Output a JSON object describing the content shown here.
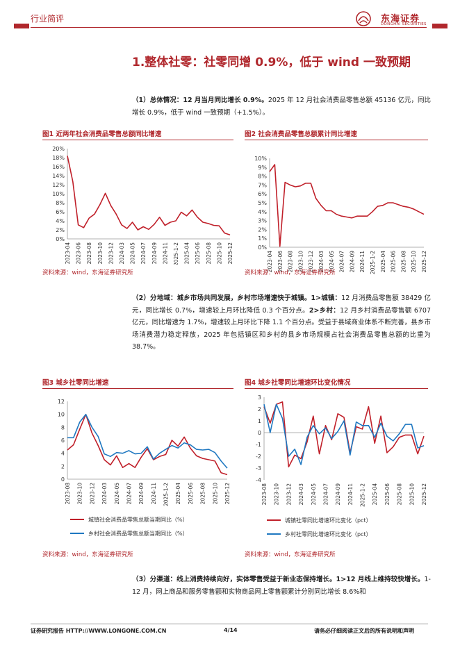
{
  "header": {
    "section": "行业简评",
    "logo_name": "东海证券",
    "logo_sub": "DONGHAI SECURITIES"
  },
  "title": "1.整体社零：社零同增 0.9%，低于 wind 一致预期",
  "p1": {
    "bold": "（1）总体情况：12 月当月同比增长 0.9%。",
    "text": "2025 年 12 月社会消费品零售总额 45136 亿元，同比增长 0.9%，低于 wind 一致预期（+1.5%）。"
  },
  "p2": {
    "bold1": "（2）分地域：城乡市场共同发展，乡村市场增速快于城镇。1>城镇：",
    "text1": "12 月消费品零售额 38429 亿元，同比增长 0.7%，增速较上月环比降低 0.3 个百分点。",
    "bold2": "2>乡村：",
    "text2": "12 月乡村消费品零售额 6707 亿元，同比增速为 1.7%，增速较上月环比下降 1.1 个百分点。受益于县域商业体系不断完善，县乡市场消费潜力稳定释放，2025 年包括镇区和乡村的县乡市场规模占社会消费品零售总额的比重为 38.7%。"
  },
  "p3": {
    "bold": "（3）分渠道：线上消费持续向好，实体零售受益于新业态保持增长。1>12 月线上维持较快增长。",
    "text": "1-12 月，网上商品和服务零售额和实物商品网上零售额累计分别同比增长 8.6%和"
  },
  "source": "资料来源：wind，东海证券研究所",
  "figures": {
    "fig1": "图1  近两年社会消费品零售总额同比增速",
    "fig2": "图2  社会消费品零售总额累计同比增速",
    "fig3": "图3  城乡社零同比增速",
    "fig4": "图4  城乡社零同比增速环比变化情况"
  },
  "footer": {
    "left": "证券研究报告    HTTP://WWW.LONGONE.COM.CN",
    "page": "4/14",
    "right": "请务必仔细阅读正文后的所有说明和声明"
  },
  "colors": {
    "accent": "#b0272c",
    "line_red": "#c0202a",
    "line_blue": "#1f78c1"
  },
  "chart_data": [
    {
      "id": "fig1",
      "type": "line",
      "ylim": [
        0,
        20
      ],
      "yticks": [
        "0%",
        "2%",
        "4%",
        "6%",
        "8%",
        "10%",
        "12%",
        "14%",
        "16%",
        "18%",
        "20%"
      ],
      "categories": [
        "2023-04",
        "2023-05",
        "2023-06",
        "2023-07",
        "2023-08",
        "2023-09",
        "2023-10",
        "2023-11",
        "2023-12",
        "2024-01",
        "2024-03",
        "2024-04",
        "2024-05",
        "2024-06",
        "2024-07",
        "2024-08",
        "2024-09",
        "2024-10",
        "2024-11",
        "2024-12",
        "2025-01",
        "2025-03",
        "2025-04",
        "2025-05",
        "2025-06",
        "2025-07",
        "2025-08",
        "2025-09",
        "2025-10",
        "2025-11",
        "2025-12"
      ],
      "xticks": [
        "2023-04",
        "2023-06",
        "2023-08",
        "2023-10",
        "2023-12",
        "2024-03",
        "2024-05",
        "2024-07",
        "2024-09",
        "2024-11",
        "2025-1-2",
        "2025-04",
        "2025-06",
        "2025-08",
        "2025-10",
        "2025-12"
      ],
      "series": [
        {
          "values": [
            18.4,
            12.7,
            3.1,
            2.5,
            4.6,
            5.5,
            7.6,
            10.1,
            7.4,
            5.5,
            3.1,
            2.3,
            3.7,
            2.0,
            2.7,
            2.1,
            3.2,
            4.8,
            3.0,
            3.7,
            4.0,
            5.9,
            5.1,
            6.4,
            4.8,
            3.7,
            3.4,
            3.0,
            2.9,
            1.3,
            0.9
          ]
        }
      ]
    },
    {
      "id": "fig2",
      "type": "line",
      "ylim": [
        0,
        10
      ],
      "yticks": [
        "0%",
        "1%",
        "2%",
        "3%",
        "4%",
        "5%",
        "6%",
        "7%",
        "8%",
        "9%",
        "10%"
      ],
      "categories": [
        "2023-04",
        "2023-05",
        "2023-06",
        "2023-07",
        "2023-08",
        "2023-09",
        "2023-10",
        "2023-11",
        "2023-12",
        "2024-01",
        "2024-03",
        "2024-04",
        "2024-05",
        "2024-06",
        "2024-07",
        "2024-08",
        "2024-09",
        "2024-10",
        "2024-11",
        "2024-12",
        "2025-01",
        "2025-03",
        "2025-04",
        "2025-05",
        "2025-06",
        "2025-07",
        "2025-08",
        "2025-09",
        "2025-10",
        "2025-11",
        "2025-12"
      ],
      "xticks": [
        "2023-04",
        "2023-06",
        "2023-08",
        "2023-10",
        "2023-12",
        "2024-03",
        "2024-05",
        "2024-07",
        "2024-09",
        "2024-11",
        "2025-1-2",
        "2025-04",
        "2025-06",
        "2025-08",
        "2025-10",
        "2025-12"
      ],
      "series": [
        {
          "values": [
            8.5,
            9.3,
            0.1,
            7.3,
            7.0,
            6.8,
            6.9,
            7.2,
            7.2,
            5.5,
            4.7,
            4.1,
            4.1,
            3.7,
            3.5,
            3.4,
            3.3,
            3.5,
            3.5,
            3.5,
            4.0,
            4.6,
            4.7,
            5.0,
            5.0,
            4.8,
            4.6,
            4.5,
            4.3,
            4.0,
            3.7
          ]
        }
      ]
    },
    {
      "id": "fig3",
      "type": "line",
      "ylim": [
        0,
        12
      ],
      "yticks": [
        "0",
        "2",
        "4",
        "6",
        "8",
        "10",
        "12"
      ],
      "categories": [
        "2023-08",
        "2023-09",
        "2023-10",
        "2023-11",
        "2023-12",
        "2024-01",
        "2024-03",
        "2024-04",
        "2024-05",
        "2024-06",
        "2024-07",
        "2024-08",
        "2024-09",
        "2024-10",
        "2024-11",
        "2024-12",
        "2025-01",
        "2025-03",
        "2025-04",
        "2025-05",
        "2025-06",
        "2025-07",
        "2025-08",
        "2025-09",
        "2025-10",
        "2025-11",
        "2025-12"
      ],
      "xticks": [
        "2023-08",
        "2023-10",
        "2023-12",
        "2024-03",
        "2024-05",
        "2024-07",
        "2024-09",
        "2024-11",
        "2025-1-2",
        "2025-04",
        "2025-06",
        "2025-08",
        "2025-10",
        "2025-12"
      ],
      "series": [
        {
          "name": "城镇社会消费品零售总额当期同比（%）",
          "color": "#c0202a",
          "values": [
            4.5,
            5.3,
            7.7,
            10.0,
            7.1,
            5.2,
            3.0,
            2.2,
            3.6,
            1.8,
            2.4,
            1.8,
            3.4,
            4.7,
            3.0,
            3.5,
            3.8,
            6.0,
            5.1,
            6.5,
            4.8,
            3.6,
            3.2,
            3.0,
            2.8,
            1.0,
            0.7
          ]
        },
        {
          "name": "乡村社会消费品零售总额当期同比（%）",
          "color": "#1f78c1",
          "values": [
            6.4,
            6.4,
            8.8,
            10.0,
            8.0,
            6.6,
            3.9,
            3.5,
            4.1,
            4.0,
            4.4,
            3.9,
            4.0,
            5.0,
            3.1,
            4.0,
            4.6,
            5.2,
            4.8,
            5.6,
            5.3,
            4.6,
            4.5,
            4.6,
            4.1,
            2.8,
            1.7
          ]
        }
      ]
    },
    {
      "id": "fig4",
      "type": "line",
      "ylim": [
        -4,
        3
      ],
      "yticks": [
        "-4",
        "-3",
        "-2",
        "-1",
        "0",
        "1",
        "2",
        "3"
      ],
      "categories": [
        "2023-08",
        "2023-09",
        "2023-10",
        "2023-11",
        "2023-12",
        "2024-01",
        "2024-03",
        "2024-04",
        "2024-05",
        "2024-06",
        "2024-07",
        "2024-08",
        "2024-09",
        "2024-10",
        "2024-11",
        "2024-12",
        "2025-01",
        "2025-03",
        "2025-04",
        "2025-05",
        "2025-06",
        "2025-07",
        "2025-08",
        "2025-09",
        "2025-10",
        "2025-11",
        "2025-12"
      ],
      "xticks": [
        "2023-08",
        "2023-10",
        "2023-12",
        "2024-03",
        "2024-05",
        "2024-07",
        "2024-09",
        "2024-11",
        "2025-1-2",
        "2025-04",
        "2025-06",
        "2025-08",
        "2025-10",
        "2025-12"
      ],
      "series": [
        {
          "name": "城镇社零同比增速环比变化（pct）",
          "color": "#c0202a",
          "values": [
            2.2,
            0.8,
            2.4,
            2.6,
            -2.9,
            -1.9,
            -2.2,
            -0.8,
            1.4,
            -1.8,
            0.6,
            -0.6,
            1.6,
            1.3,
            -1.7,
            0.5,
            0.3,
            2.2,
            -0.9,
            1.4,
            -1.7,
            -1.2,
            -0.4,
            -0.2,
            -0.2,
            -1.8,
            -0.3
          ]
        },
        {
          "name": "乡村社零同比增速环比变化（pct）",
          "color": "#1f78c1",
          "values": [
            2.4,
            0.0,
            2.4,
            1.2,
            -2.0,
            -1.4,
            -2.7,
            -0.4,
            0.6,
            -0.1,
            0.4,
            -0.5,
            0.1,
            1.0,
            -1.9,
            0.9,
            0.6,
            0.6,
            -0.4,
            0.8,
            -0.3,
            -0.7,
            -0.1,
            0.7,
            0.7,
            -1.3,
            -1.1
          ]
        }
      ]
    }
  ]
}
